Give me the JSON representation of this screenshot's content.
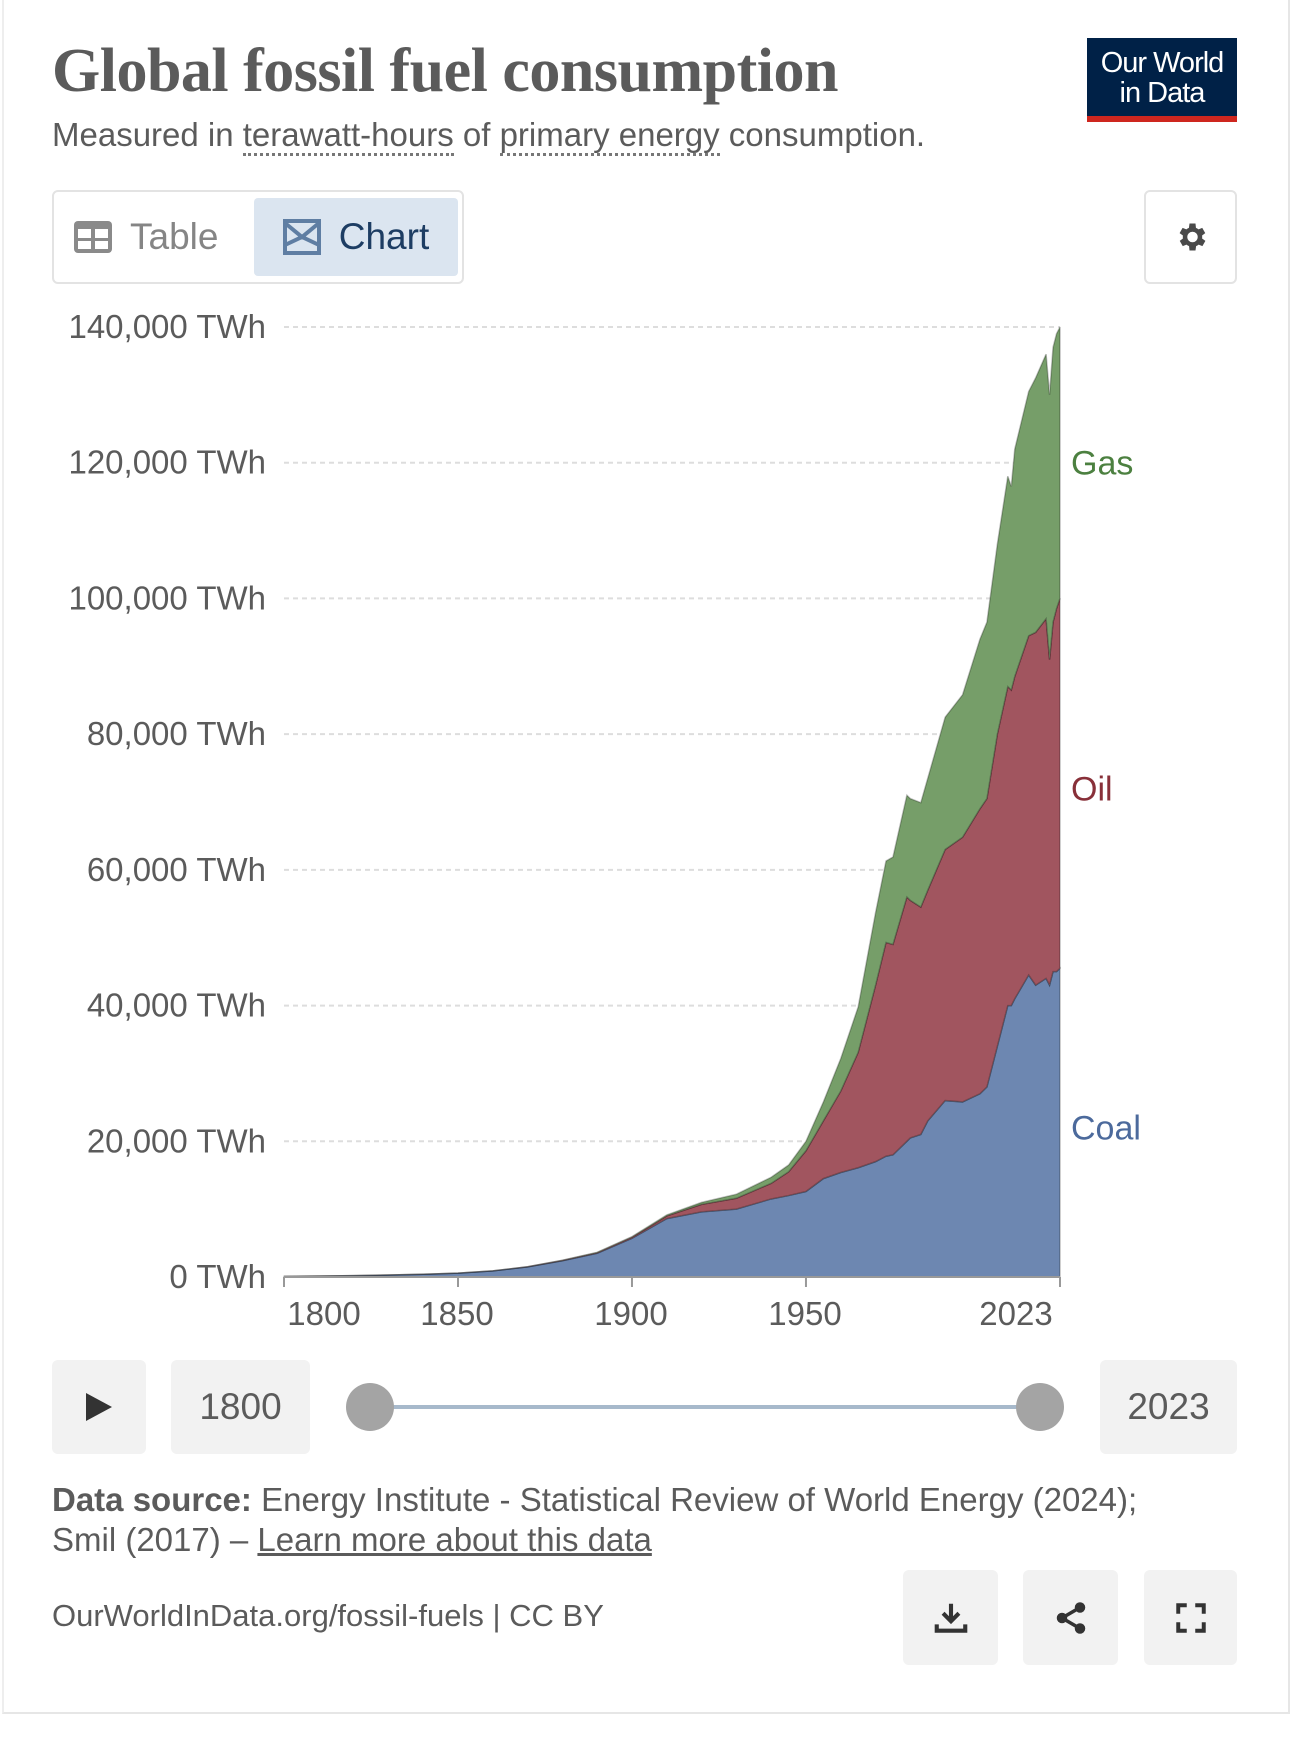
{
  "header": {
    "title": "Global fossil fuel consumption",
    "subtitle_prefix": "Measured in ",
    "subtitle_link1": "terawatt-hours",
    "subtitle_mid": " of ",
    "subtitle_link2": "primary energy",
    "subtitle_suffix": " consumption.",
    "logo_line1": "Our World",
    "logo_line2": "in Data"
  },
  "tabs": [
    {
      "label": "Table",
      "icon": "table-icon",
      "active": false
    },
    {
      "label": "Chart",
      "icon": "chart-icon",
      "active": true
    }
  ],
  "settings_icon": "gear-icon",
  "timeline": {
    "start_label": "1800",
    "end_label": "2023",
    "play_icon": "play-icon"
  },
  "source": {
    "label": "Data source:",
    "text": " Energy Institute - Statistical Review of World Energy (2024); Smil (2017) – ",
    "link": "Learn more about this data"
  },
  "footer": {
    "text": "OurWorldInData.org/fossil-fuels | CC BY",
    "buttons": [
      "download-icon",
      "share-icon",
      "fullscreen-icon"
    ]
  },
  "colors": {
    "coal": "#6d87b1",
    "oil": "#a1555f",
    "gas": "#769e69",
    "coal_label": "#4c6a9c",
    "oil_label": "#883039",
    "gas_label": "#4c8040"
  },
  "chart_data": {
    "type": "area",
    "stacked": true,
    "title": "Global fossil fuel consumption",
    "ylim": [
      0,
      140000
    ],
    "xlim": [
      1800,
      2023
    ],
    "yticks": [
      "0 TWh",
      "20,000 TWh",
      "40,000 TWh",
      "60,000 TWh",
      "80,000 TWh",
      "100,000 TWh",
      "120,000 TWh",
      "140,000 TWh"
    ],
    "ytick_values": [
      0,
      20000,
      40000,
      60000,
      80000,
      100000,
      120000,
      140000
    ],
    "xticks": [
      "1800",
      "1850",
      "1900",
      "1950",
      "2023"
    ],
    "xtick_values": [
      1800,
      1850,
      1900,
      1950,
      2023
    ],
    "grid": "horizontal dashed",
    "legend": "right, inline labels",
    "x": [
      1800,
      1820,
      1840,
      1850,
      1860,
      1870,
      1880,
      1890,
      1900,
      1910,
      1920,
      1930,
      1940,
      1945,
      1950,
      1955,
      1960,
      1965,
      1970,
      1973,
      1975,
      1979,
      1980,
      1983,
      1985,
      1990,
      1995,
      2000,
      2002,
      2005,
      2008,
      2009,
      2010,
      2014,
      2016,
      2019,
      2020,
      2021,
      2022,
      2023
    ],
    "series": [
      {
        "name": "Coal",
        "values": [
          97,
          200,
          400,
          570,
          900,
          1500,
          2400,
          3500,
          5700,
          8600,
          9600,
          10000,
          11500,
          12000,
          12600,
          14500,
          15400,
          16100,
          17000,
          17800,
          18000,
          20000,
          20500,
          21000,
          23000,
          26000,
          25800,
          27000,
          28000,
          34000,
          40000,
          40000,
          41000,
          44500,
          43000,
          44000,
          43000,
          45000,
          45000,
          45500
        ]
      },
      {
        "name": "Oil",
        "values": [
          0,
          0,
          0,
          0,
          0,
          10,
          50,
          100,
          180,
          400,
          1100,
          1600,
          2300,
          3500,
          6000,
          8500,
          12000,
          17000,
          26000,
          31500,
          31000,
          36000,
          35000,
          33500,
          34000,
          37000,
          39000,
          42000,
          42500,
          46000,
          47000,
          46500,
          47500,
          50000,
          52000,
          53000,
          48000,
          51500,
          53500,
          54500
        ]
      },
      {
        "name": "Gas",
        "values": [
          0,
          0,
          0,
          0,
          0,
          0,
          20,
          40,
          60,
          150,
          300,
          600,
          900,
          1000,
          1400,
          2800,
          4800,
          6700,
          10700,
          12000,
          12900,
          15000,
          15000,
          15400,
          16500,
          19500,
          21000,
          25000,
          26000,
          28000,
          31000,
          30000,
          33500,
          36000,
          37500,
          39000,
          39000,
          40500,
          40500,
          40000
        ]
      }
    ]
  }
}
